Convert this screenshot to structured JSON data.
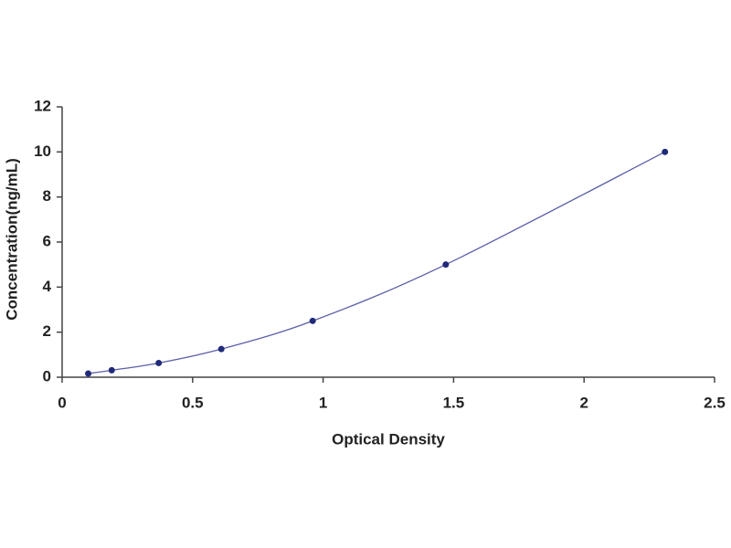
{
  "chart_data": {
    "type": "scatter",
    "x_label": "Optical Density",
    "y_label": "Concentration(ng/mL)",
    "x": [
      0.1,
      0.19,
      0.37,
      0.61,
      0.96,
      1.47,
      2.31
    ],
    "values": [
      0.16,
      0.31,
      0.63,
      1.25,
      2.5,
      5,
      10
    ],
    "color": "#1f2a78",
    "line": true,
    "line_color": "#5a5fa8",
    "xlim": [
      0,
      2.5
    ],
    "xticks": [
      0,
      0.5,
      1,
      1.5,
      2,
      2.5
    ],
    "ylim": [
      0,
      12
    ],
    "yticks": [
      0,
      2,
      4,
      6,
      8,
      10,
      12
    ],
    "grid": false
  }
}
